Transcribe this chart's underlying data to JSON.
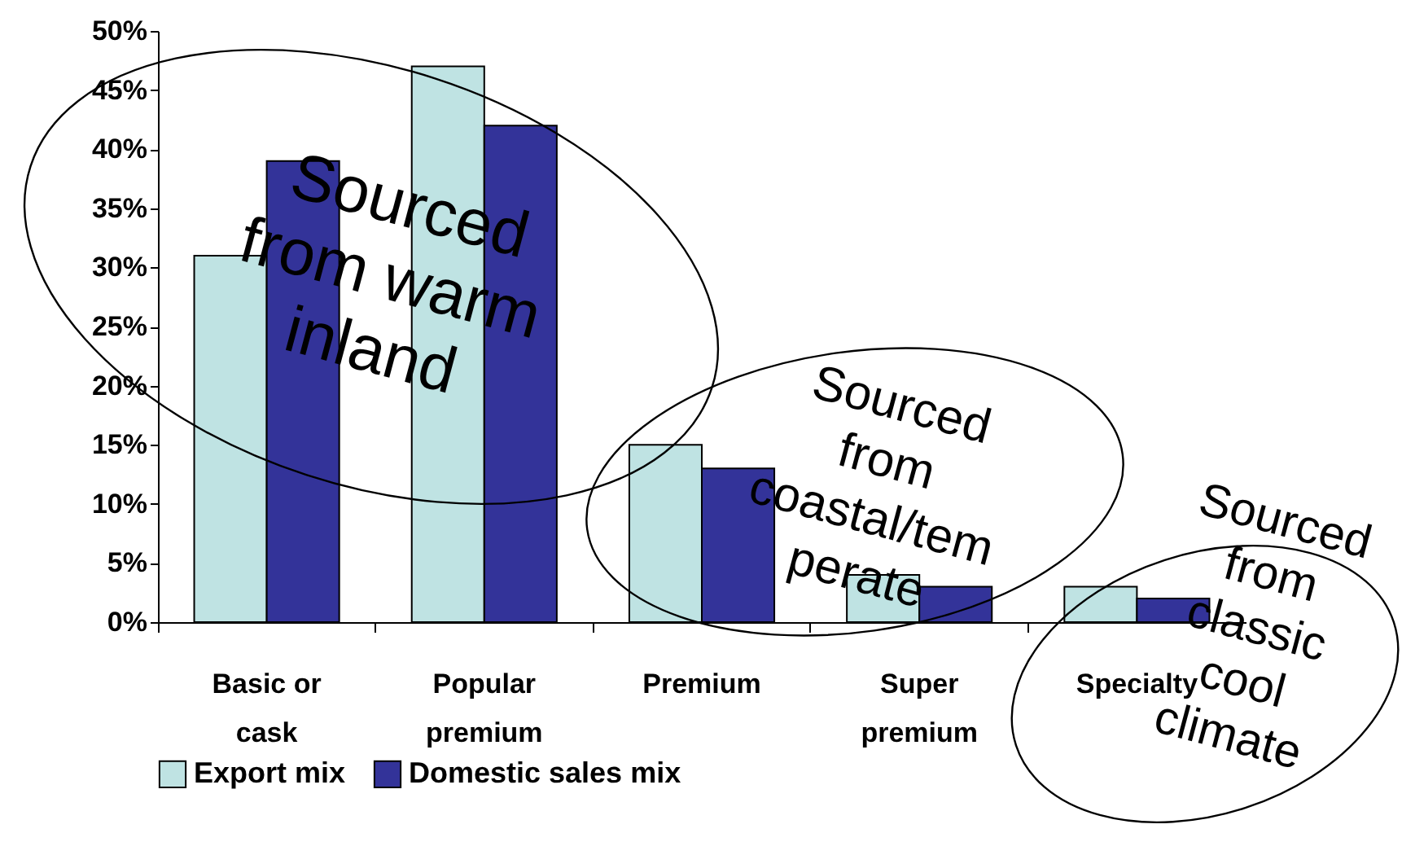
{
  "chart_data": {
    "type": "bar",
    "categories": [
      "Basic or cask",
      "Popular premium",
      "Premium",
      "Super premium",
      "Specialty"
    ],
    "series": [
      {
        "name": "Export mix",
        "color": "#bfe3e3",
        "values": [
          31,
          47,
          15,
          4,
          3
        ]
      },
      {
        "name": "Domestic sales mix",
        "color": "#333399",
        "values": [
          39,
          42,
          13,
          3,
          2
        ]
      }
    ],
    "ylim": [
      0,
      50
    ],
    "yticks": [
      {
        "value": 0,
        "label": "0%"
      },
      {
        "value": 5,
        "label": "5%"
      },
      {
        "value": 10,
        "label": "10%"
      },
      {
        "value": 15,
        "label": "15%"
      },
      {
        "value": 20,
        "label": "20%"
      },
      {
        "value": 25,
        "label": "25%"
      },
      {
        "value": 30,
        "label": "30%"
      },
      {
        "value": 35,
        "label": "35%"
      },
      {
        "value": 40,
        "label": "40%"
      },
      {
        "value": 45,
        "label": "45%"
      },
      {
        "value": 50,
        "label": "50%"
      }
    ],
    "grid": false,
    "legend": "bottom",
    "annotations": [
      "Sourced from warm inland",
      "Sourced from coastal/tem perate",
      "Sourced from classic cool climate"
    ]
  }
}
